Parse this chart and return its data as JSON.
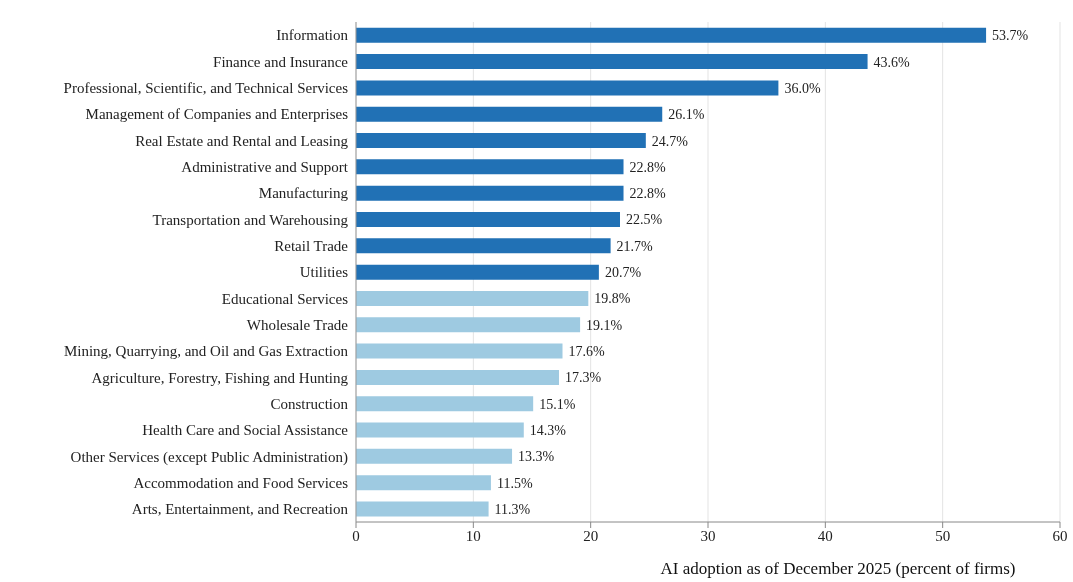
{
  "chart_data": {
    "type": "bar",
    "orientation": "horizontal",
    "xlabel": "AI adoption as of December 2025 (percent of firms)",
    "categories": [
      "Information",
      "Finance and Insurance",
      "Professional, Scientific, and Technical Services",
      "Management of Companies and Enterprises",
      "Real Estate and Rental and Leasing",
      "Administrative and Support",
      "Manufacturing",
      "Transportation and Warehousing",
      "Retail Trade",
      "Utilities",
      "Educational Services",
      "Wholesale Trade",
      "Mining, Quarrying, and Oil and Gas Extraction",
      "Agriculture, Forestry, Fishing and Hunting",
      "Construction",
      "Health Care and Social Assistance",
      "Other Services (except Public Administration)",
      "Accommodation and Food Services",
      "Arts, Entertainment, and Recreation"
    ],
    "values": [
      53.7,
      43.6,
      36.0,
      26.1,
      24.7,
      22.8,
      22.8,
      22.5,
      21.7,
      20.7,
      19.8,
      19.1,
      17.6,
      17.3,
      15.1,
      14.3,
      13.3,
      11.5,
      11.3
    ],
    "value_labels": [
      "53.7%",
      "43.6%",
      "36.0%",
      "26.1%",
      "24.7%",
      "22.8%",
      "22.8%",
      "22.5%",
      "21.7%",
      "20.7%",
      "19.8%",
      "19.1%",
      "17.6%",
      "17.3%",
      "15.1%",
      "14.3%",
      "13.3%",
      "11.5%",
      "11.3%"
    ],
    "colors": [
      "#2171b5",
      "#2171b5",
      "#2171b5",
      "#2171b5",
      "#2171b5",
      "#2171b5",
      "#2171b5",
      "#2171b5",
      "#2171b5",
      "#2171b5",
      "#9ecae1",
      "#9ecae1",
      "#9ecae1",
      "#9ecae1",
      "#9ecae1",
      "#9ecae1",
      "#9ecae1",
      "#9ecae1",
      "#9ecae1"
    ],
    "xlim": [
      0,
      60
    ],
    "xticks": [
      0,
      10,
      20,
      30,
      40,
      50,
      60
    ],
    "grid": "x",
    "legend": false
  }
}
